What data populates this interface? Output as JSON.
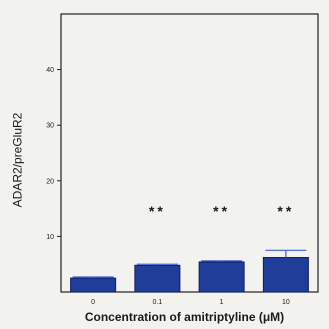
{
  "chart_data": {
    "type": "bar",
    "title": "",
    "xlabel": "Concentration of amitriptyline (μM)",
    "ylabel": "ADAR2/preGluR2",
    "categories": [
      "0",
      "0.1",
      "1",
      "10"
    ],
    "values": [
      2.5,
      4.8,
      5.4,
      6.2
    ],
    "errors": [
      0.2,
      0.2,
      0.2,
      1.3
    ],
    "significance": [
      "",
      "**",
      "**",
      "**"
    ],
    "ylim": [
      0,
      50
    ],
    "yticks": [
      10,
      20,
      30,
      40
    ],
    "grid": false,
    "colors": {
      "bar": "#1f3d99",
      "bar_edge": "#0d1f5c",
      "error": "#3f5fd6",
      "axis": "#222222",
      "text": "#1a1a1a"
    }
  }
}
